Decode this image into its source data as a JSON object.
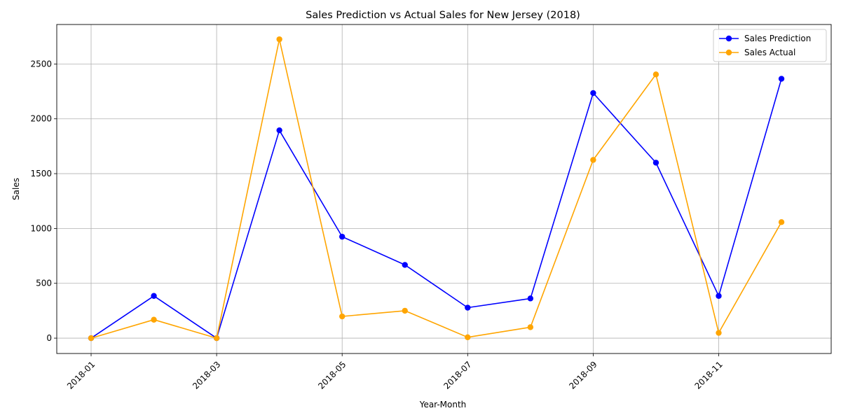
{
  "chart_data": {
    "type": "line",
    "title": "Sales Prediction vs Actual Sales for New Jersey (2018)",
    "xlabel": "Year-Month",
    "ylabel": "Sales",
    "x": [
      "2018-01",
      "2018-02",
      "2018-03",
      "2018-04",
      "2018-05",
      "2018-06",
      "2018-07",
      "2018-08",
      "2018-09",
      "2018-10",
      "2018-11",
      "2018-12"
    ],
    "x_ticks": [
      "2018-01",
      "2018-03",
      "2018-05",
      "2018-07",
      "2018-09",
      "2018-11"
    ],
    "y_ticks": [
      0,
      500,
      1000,
      1500,
      2000,
      2500
    ],
    "ylim": [
      -140,
      2860
    ],
    "grid": true,
    "legend_position": "top-right",
    "series": [
      {
        "name": "Sales Prediction",
        "color": "#0000ff",
        "values": [
          0,
          385,
          0,
          1895,
          925,
          668,
          278,
          362,
          2235,
          1600,
          385,
          2365
        ]
      },
      {
        "name": "Sales Actual",
        "color": "#ffa500",
        "values": [
          0,
          168,
          0,
          2725,
          198,
          250,
          8,
          100,
          1625,
          2405,
          48,
          1058
        ]
      }
    ]
  }
}
